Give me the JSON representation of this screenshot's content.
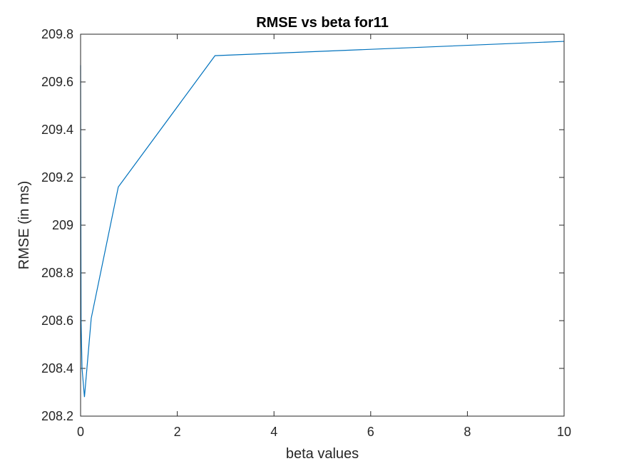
{
  "chart_data": {
    "type": "line",
    "title": "RMSE vs beta for11",
    "xlabel": "beta values",
    "ylabel": "RMSE (in ms)",
    "xlim": [
      0,
      10
    ],
    "ylim": [
      208.2,
      209.8
    ],
    "xticks": [
      0,
      2,
      4,
      6,
      8,
      10
    ],
    "xtick_labels": [
      "0",
      "2",
      "4",
      "6",
      "8",
      "10"
    ],
    "yticks": [
      208.2,
      208.4,
      208.6,
      208.8,
      209,
      209.2,
      209.4,
      209.6,
      209.8
    ],
    "ytick_labels": [
      "208.2",
      "208.4",
      "208.6",
      "208.8",
      "209",
      "209.2",
      "209.4",
      "209.6",
      "209.8"
    ],
    "grid": false,
    "series": [
      {
        "color": "#0072BD",
        "x": [
          0.0001,
          0.001,
          0.01,
          0.03,
          0.08,
          0.22,
          0.78,
          2.78,
          10
        ],
        "y": [
          209.67,
          209.5,
          208.6,
          208.4,
          208.28,
          208.61,
          209.16,
          209.71,
          209.77
        ]
      }
    ]
  }
}
